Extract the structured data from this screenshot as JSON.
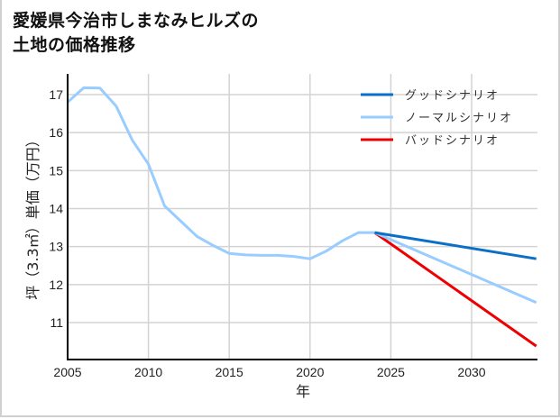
{
  "title": {
    "line1": "愛媛県今治市しまなみヒルズの",
    "line2": "土地の価格推移"
  },
  "chart_data": {
    "type": "line",
    "title": "愛媛県今治市しまなみヒルズの土地の価格推移",
    "xlabel": "年",
    "ylabel": "坪（3.3㎡）単価（万円）",
    "xlim": [
      2005,
      2034
    ],
    "ylim": [
      10.0,
      17.55
    ],
    "xticks": [
      2005,
      2010,
      2015,
      2020,
      2025,
      2030
    ],
    "yticks": [
      11,
      12,
      13,
      14,
      15,
      16,
      17
    ],
    "grid": true,
    "legend_position": "upper right",
    "series": [
      {
        "name": "ノーマルシナリオ",
        "role": "historical",
        "color": "#99ccff",
        "x": [
          2005,
          2006,
          2007,
          2008,
          2009,
          2010,
          2011,
          2012,
          2013,
          2014,
          2015,
          2016,
          2017,
          2018,
          2019,
          2020,
          2021,
          2022,
          2023,
          2024
        ],
        "y": [
          16.8,
          17.18,
          17.17,
          16.7,
          15.8,
          15.17,
          14.07,
          13.67,
          13.27,
          13.03,
          12.82,
          12.78,
          12.77,
          12.77,
          12.74,
          12.68,
          12.88,
          13.15,
          13.37,
          13.37
        ]
      },
      {
        "name": "グッドシナリオ",
        "color": "#0a6fc8",
        "x": [
          2024,
          2034
        ],
        "y": [
          13.37,
          12.68
        ]
      },
      {
        "name": "ノーマルシナリオ",
        "color": "#99ccff",
        "x": [
          2024,
          2034
        ],
        "y": [
          13.37,
          11.53
        ]
      },
      {
        "name": "バッドシナリオ",
        "color": "#ee0000",
        "x": [
          2024,
          2034
        ],
        "y": [
          13.37,
          10.38
        ]
      }
    ]
  },
  "legend": [
    {
      "label": "グッドシナリオ",
      "color": "#0a6fc8"
    },
    {
      "label": "ノーマルシナリオ",
      "color": "#99ccff"
    },
    {
      "label": "バッドシナリオ",
      "color": "#ee0000"
    }
  ],
  "axes": {
    "xlabel": "年",
    "ylabel": "坪（3.3㎡）単価（万円）"
  }
}
